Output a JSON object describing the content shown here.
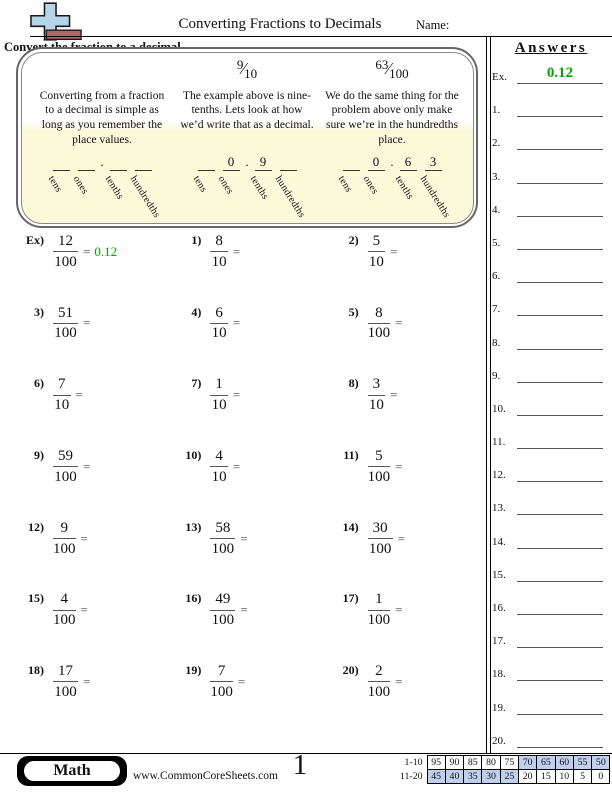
{
  "header": {
    "title": "Converting Fractions to Decimals",
    "name_label": "Name:"
  },
  "instruction": "Convert the fraction to a decimal.",
  "example_box": {
    "top_fractions": [
      {
        "num": "9",
        "den": "10"
      },
      {
        "num": "63",
        "den": "100"
      }
    ],
    "columns": [
      {
        "text": "Converting from a fraction to a decimal is simple as long as you remember the place values.",
        "digits": [
          "",
          "",
          "",
          ""
        ]
      },
      {
        "text": "The example above is nine-tenths. Lets look at how we’d write that as a decimal.",
        "digits": [
          "",
          "0",
          "9",
          ""
        ]
      },
      {
        "text": "We do the same thing for the problem above only make sure we’re in the hundredths place.",
        "digits": [
          "",
          "0",
          "6",
          "3"
        ]
      }
    ],
    "place_labels": [
      "tens",
      "ones",
      "tenths",
      "hundredths"
    ],
    "decimal_point": "."
  },
  "problems": [
    {
      "label": "Ex)",
      "num": "12",
      "den": "100",
      "eq": "=",
      "answer": "0.12"
    },
    {
      "label": "1)",
      "num": "8",
      "den": "10",
      "eq": "="
    },
    {
      "label": "2)",
      "num": "5",
      "den": "10",
      "eq": "="
    },
    {
      "label": "3)",
      "num": "51",
      "den": "100",
      "eq": "="
    },
    {
      "label": "4)",
      "num": "6",
      "den": "10",
      "eq": "="
    },
    {
      "label": "5)",
      "num": "8",
      "den": "100",
      "eq": "="
    },
    {
      "label": "6)",
      "num": "7",
      "den": "10",
      "eq": "="
    },
    {
      "label": "7)",
      "num": "1",
      "den": "10",
      "eq": "="
    },
    {
      "label": "8)",
      "num": "3",
      "den": "10",
      "eq": "="
    },
    {
      "label": "9)",
      "num": "59",
      "den": "100",
      "eq": "="
    },
    {
      "label": "10)",
      "num": "4",
      "den": "10",
      "eq": "="
    },
    {
      "label": "11)",
      "num": "5",
      "den": "100",
      "eq": "="
    },
    {
      "label": "12)",
      "num": "9",
      "den": "100",
      "eq": "="
    },
    {
      "label": "13)",
      "num": "58",
      "den": "100",
      "eq": "="
    },
    {
      "label": "14)",
      "num": "30",
      "den": "100",
      "eq": "="
    },
    {
      "label": "15)",
      "num": "4",
      "den": "100",
      "eq": "="
    },
    {
      "label": "16)",
      "num": "49",
      "den": "100",
      "eq": "="
    },
    {
      "label": "17)",
      "num": "1",
      "den": "100",
      "eq": "="
    },
    {
      "label": "18)",
      "num": "17",
      "den": "100",
      "eq": "="
    },
    {
      "label": "19)",
      "num": "7",
      "den": "100",
      "eq": "="
    },
    {
      "label": "20)",
      "num": "2",
      "den": "100",
      "eq": "="
    }
  ],
  "answers_panel": {
    "title": "Answers",
    "items": [
      {
        "label": "Ex.",
        "value": "0.12"
      },
      {
        "label": "1."
      },
      {
        "label": "2."
      },
      {
        "label": "3."
      },
      {
        "label": "4."
      },
      {
        "label": "5."
      },
      {
        "label": "6."
      },
      {
        "label": "7."
      },
      {
        "label": "8."
      },
      {
        "label": "9."
      },
      {
        "label": "10."
      },
      {
        "label": "11."
      },
      {
        "label": "12."
      },
      {
        "label": "13."
      },
      {
        "label": "14."
      },
      {
        "label": "15."
      },
      {
        "label": "16."
      },
      {
        "label": "17."
      },
      {
        "label": "18."
      },
      {
        "label": "19."
      },
      {
        "label": "20."
      }
    ]
  },
  "footer": {
    "subject": "Math",
    "website": "www.CommonCoreSheets.com",
    "page_number": "1",
    "score_table": {
      "rows": [
        {
          "label": "1-10",
          "cells": [
            {
              "v": "95",
              "hl": false
            },
            {
              "v": "90",
              "hl": false
            },
            {
              "v": "85",
              "hl": false
            },
            {
              "v": "80",
              "hl": false
            },
            {
              "v": "75",
              "hl": false
            },
            {
              "v": "70",
              "hl": true
            },
            {
              "v": "65",
              "hl": true
            },
            {
              "v": "60",
              "hl": true
            },
            {
              "v": "55",
              "hl": true
            },
            {
              "v": "50",
              "hl": true
            }
          ]
        },
        {
          "label": "11-20",
          "cells": [
            {
              "v": "45",
              "hl": true
            },
            {
              "v": "40",
              "hl": true
            },
            {
              "v": "35",
              "hl": true
            },
            {
              "v": "30",
              "hl": true
            },
            {
              "v": "25",
              "hl": true
            },
            {
              "v": "20",
              "hl": false
            },
            {
              "v": "15",
              "hl": false
            },
            {
              "v": "10",
              "hl": false
            },
            {
              "v": "5",
              "hl": false
            },
            {
              "v": "0",
              "hl": false
            }
          ]
        }
      ]
    }
  },
  "colors": {
    "answer_green": "#00a300",
    "score_highlight": "#c0cfee"
  }
}
